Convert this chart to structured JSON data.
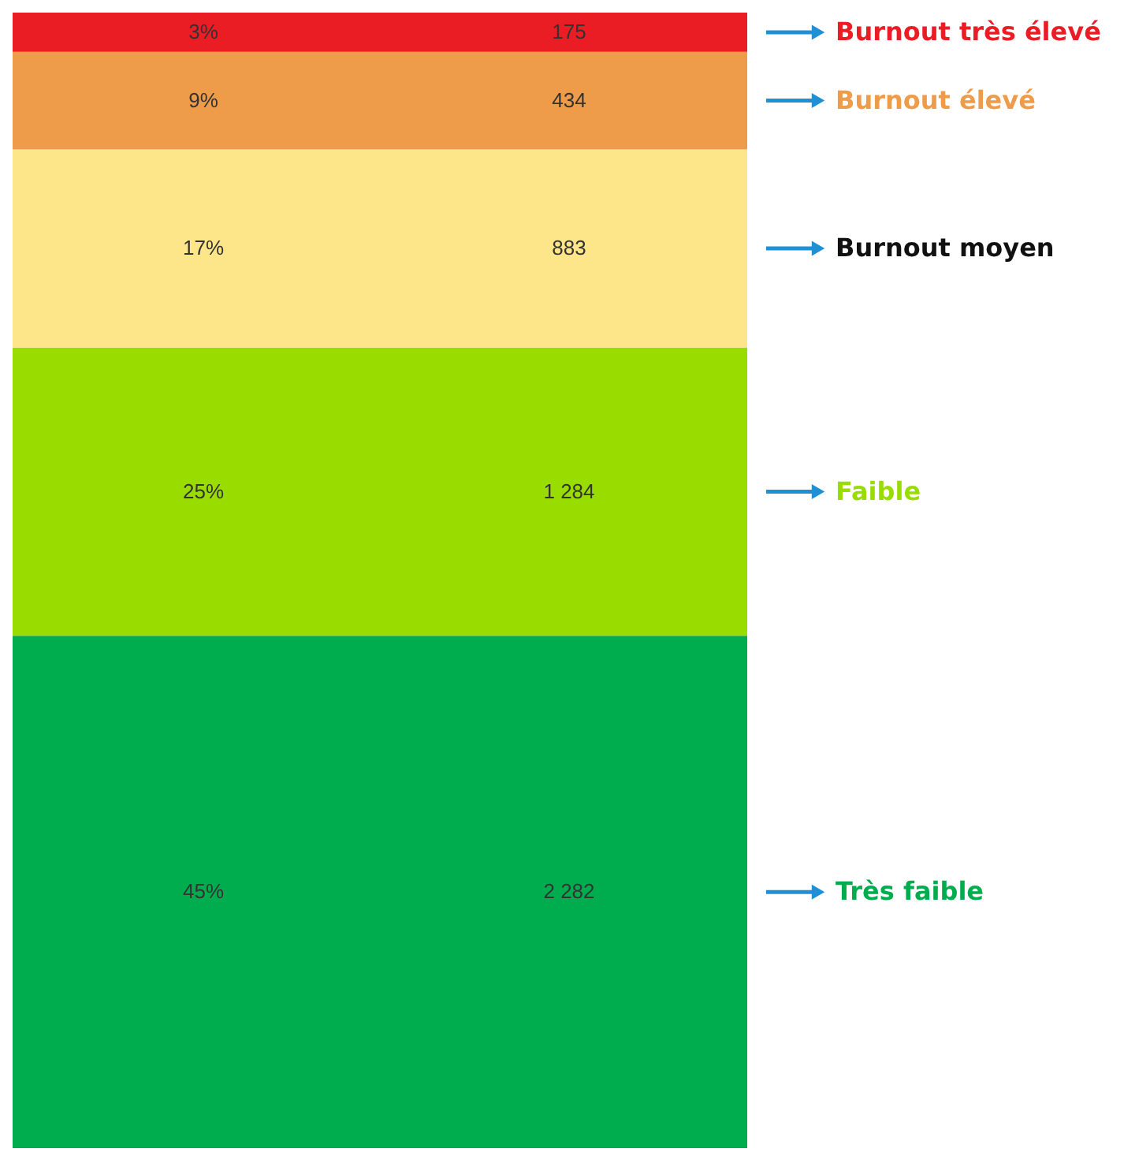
{
  "chart_data": {
    "type": "bar",
    "stacked": true,
    "categories": [
      null
    ],
    "series": [
      {
        "name": "Très faible",
        "color": "#00ad4e",
        "values": [
          2282
        ],
        "value_labels": [
          "2 282"
        ]
      },
      {
        "name": "Faible",
        "color": "#99dc00",
        "values": [
          1284
        ],
        "value_labels": [
          "1 284"
        ]
      },
      {
        "name": "Burnout moyen",
        "color": "#fde58a",
        "values": [
          883
        ],
        "value_labels": [
          "883"
        ]
      },
      {
        "name": "Burnout élevé",
        "color": "#ee9c4a",
        "values": [
          434
        ],
        "value_labels": [
          "434"
        ]
      },
      {
        "name": "Burnout très élevé",
        "color": "#ea1c24",
        "values": [
          175
        ],
        "value_labels": [
          "175"
        ]
      }
    ],
    "annotations": [
      "45%",
      "25%",
      "17%",
      "9%",
      "3%"
    ]
  }
}
